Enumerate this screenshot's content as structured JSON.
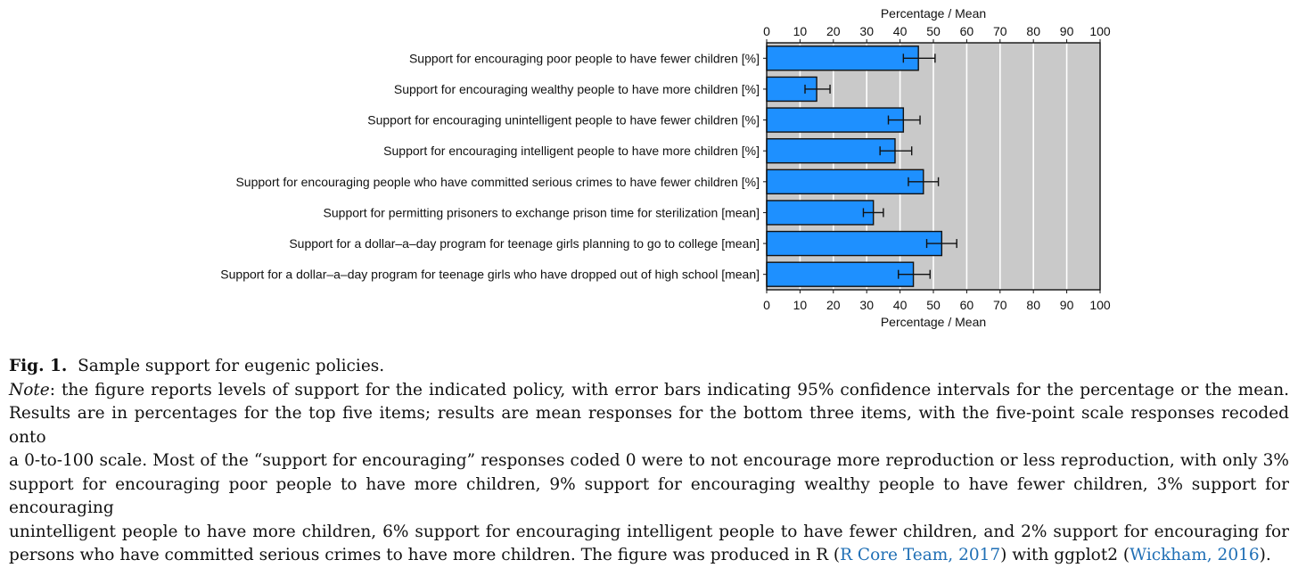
{
  "chart_data": {
    "type": "bar",
    "orientation": "horizontal",
    "xlabel_top": "Percentage / Mean",
    "xlabel_bottom": "Percentage / Mean",
    "xlim": [
      0,
      100
    ],
    "x_ticks": [
      "0",
      "10",
      "20",
      "30",
      "40",
      "50",
      "60",
      "70",
      "80",
      "90",
      "100"
    ],
    "categories": [
      "Support for encouraging poor people to have fewer children [%]",
      "Support for encouraging wealthy people to have more children [%]",
      "Support for encouraging unintelligent people to have fewer children [%]",
      "Support for encouraging intelligent people to have more children [%]",
      "Support for encouraging people who have committed serious crimes to have fewer children [%]",
      "Support for permitting prisoners to exchange prison time for sterilization [mean]",
      "Support for a dollar–a–day program for teenage girls planning to go to college [mean]",
      "Support for a dollar–a–day program for teenage girls who have dropped out of high school [mean]"
    ],
    "values": [
      45.5,
      15,
      41,
      38.5,
      47,
      32,
      52.5,
      44
    ],
    "ci_low": [
      41,
      11.5,
      36.5,
      34,
      42.5,
      29,
      48,
      39.5
    ],
    "ci_high": [
      50.5,
      19,
      46,
      43.5,
      51.5,
      35,
      57,
      49
    ],
    "grid": true,
    "bar_color": "#1e90ff",
    "panel_color": "#c9c9c9"
  },
  "caption": {
    "fig_label": "Fig. 1.",
    "fig_title": "Sample support for eugenic policies.",
    "note_label": "Note",
    "lines": [
      ": the figure reports levels of support for the indicated policy, with error bars indicating 95% confidence intervals for the percentage or the mean.",
      "Results are in percentages for the top five items; results are mean responses for the bottom three items, with the five-point scale responses recoded onto",
      "a 0-to-100 scale. Most of the “support for encouraging” responses coded 0 were to not encourage more reproduction or less reproduction, with only 3%",
      "support for encouraging poor people to have more children, 9% support for encouraging wealthy people to have fewer children, 3% support for encouraging",
      "unintelligent people to have more children, 6% support for encouraging intelligent people to have fewer children, and 2% support for encouraging for"
    ],
    "last_prefix": "persons who have committed serious crimes to have more children. The figure was produced in R (",
    "ref1": "R Core Team, 2017",
    "last_mid": ") with ggplot2 (",
    "ref2": "Wickham, 2016",
    "last_suffix": ")."
  }
}
